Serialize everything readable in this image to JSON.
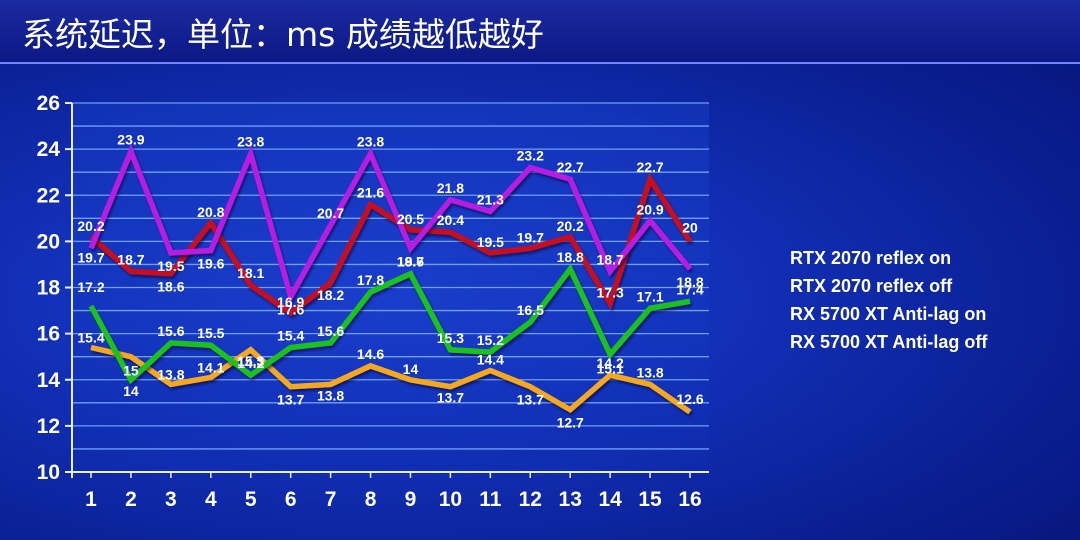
{
  "title": "系统延迟，单位：ms 成绩越低越好",
  "chart_data": {
    "type": "line",
    "title": "系统延迟，单位：ms 成绩越低越好",
    "xlabel": "",
    "ylabel": "",
    "categories": [
      "1",
      "2",
      "3",
      "4",
      "5",
      "6",
      "7",
      "8",
      "9",
      "10",
      "11",
      "12",
      "13",
      "14",
      "15",
      "16"
    ],
    "ylim": [
      10,
      26
    ],
    "yticks": [
      "10",
      "12",
      "14",
      "16",
      "18",
      "20",
      "22",
      "24",
      "26"
    ],
    "grid": true,
    "legend_position": "right",
    "series": [
      {
        "name": "RTX 2070 reflex on",
        "color": "#f5a81c",
        "values": [
          15.4,
          15,
          13.8,
          14.1,
          15.3,
          13.7,
          13.8,
          14.6,
          14,
          13.7,
          14.4,
          13.7,
          12.7,
          14.2,
          13.8,
          12.6
        ]
      },
      {
        "name": "RTX 2070 reflex off",
        "color": "#1fc21a",
        "values": [
          17.2,
          14,
          15.6,
          15.5,
          14.2,
          15.4,
          15.6,
          17.8,
          18.6,
          15.3,
          15.2,
          16.5,
          18.8,
          15.1,
          17.1,
          17.4
        ]
      },
      {
        "name": "RX 5700 XT Anti-lag on",
        "color": "#c8101c",
        "values": [
          20.2,
          18.7,
          18.6,
          20.8,
          18.1,
          16.9,
          18.2,
          21.6,
          20.5,
          20.4,
          19.5,
          19.7,
          20.2,
          17.3,
          22.7,
          20
        ]
      },
      {
        "name": "RX 5700 XT Anti-lag off",
        "color": "#b81ee0",
        "values": [
          19.7,
          23.9,
          19.5,
          19.6,
          23.8,
          17.6,
          20.7,
          23.8,
          19.7,
          21.8,
          21.3,
          23.2,
          22.7,
          18.7,
          20.9,
          18.8
        ]
      }
    ]
  }
}
